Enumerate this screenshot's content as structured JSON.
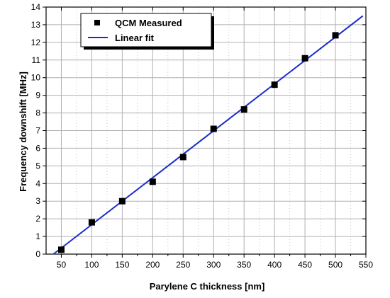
{
  "chart_data": {
    "type": "scatter",
    "xlabel": "Parylene C thickness [nm]",
    "ylabel": "Frequency downshift [MHz]",
    "xlim": [
      25,
      550
    ],
    "ylim": [
      0,
      14
    ],
    "x_ticks": [
      50,
      100,
      150,
      200,
      250,
      300,
      350,
      400,
      450,
      500,
      550
    ],
    "y_ticks": [
      0,
      1,
      2,
      3,
      4,
      5,
      6,
      7,
      8,
      9,
      10,
      11,
      12,
      13,
      14
    ],
    "grid": true,
    "legend_position": "top-left",
    "series": [
      {
        "name": "QCM Measured",
        "kind": "markers",
        "marker": "square",
        "color": "#000000",
        "x": [
          50,
          100,
          150,
          200,
          250,
          300,
          350,
          400,
          450,
          500
        ],
        "y": [
          0.25,
          1.8,
          3.0,
          4.1,
          5.5,
          7.1,
          8.2,
          9.6,
          11.1,
          12.4
        ]
      },
      {
        "name": "Linear fit",
        "kind": "line",
        "color": "#1a2ecc",
        "x": [
          37,
          545
        ],
        "y": [
          0,
          13.5
        ]
      }
    ]
  }
}
